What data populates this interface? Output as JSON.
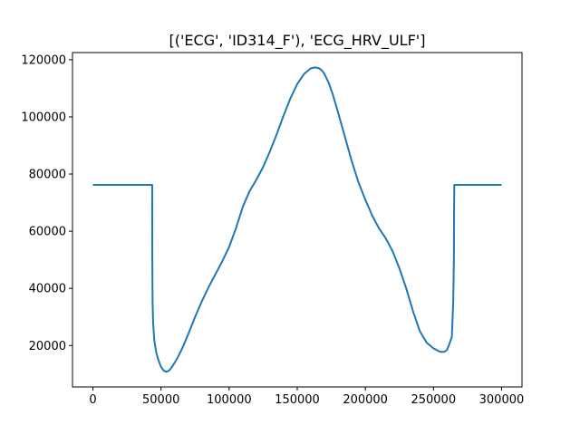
{
  "chart_data": {
    "type": "line",
    "title": "[('ECG', 'ID314_F'), 'ECG_HRV_ULF']",
    "xlabel": "",
    "ylabel": "",
    "xlim": [
      -15000,
      315000
    ],
    "ylim": [
      5500,
      122500
    ],
    "xticks": [
      0,
      50000,
      100000,
      150000,
      200000,
      250000,
      300000
    ],
    "xtick_labels": [
      "0",
      "50000",
      "100000",
      "150000",
      "200000",
      "250000",
      "300000"
    ],
    "yticks": [
      20000,
      40000,
      60000,
      80000,
      100000,
      120000
    ],
    "ytick_labels": [
      "20000",
      "40000",
      "60000",
      "80000",
      "100000",
      "120000"
    ],
    "grid": false,
    "colors": {
      "line": "#1f77b4",
      "axes": "#000000",
      "background": "#ffffff"
    },
    "series": [
      {
        "x": [
          0,
          20000,
          43500,
          43600,
          43800,
          44200,
          45000,
          46500,
          48000,
          50000,
          52000,
          54000,
          56000,
          58000,
          60000,
          63000,
          66000,
          70000,
          75000,
          80000,
          85000,
          90000,
          95000,
          100000,
          105000,
          110000,
          115000,
          120000,
          125000,
          130000,
          135000,
          140000,
          145000,
          150000,
          155000,
          160000,
          163000,
          166000,
          168000,
          170000,
          173000,
          176000,
          180000,
          185000,
          190000,
          195000,
          200000,
          205000,
          210000,
          215000,
          220000,
          225000,
          230000,
          235000,
          240000,
          245000,
          250000,
          255000,
          258000,
          260000,
          262000,
          263500,
          264500,
          265000,
          265100,
          265300,
          265500,
          280000,
          300000
        ],
        "y": [
          76200,
          76200,
          76200,
          50000,
          35000,
          28000,
          22000,
          17500,
          15000,
          12500,
          11200,
          10800,
          11300,
          12500,
          14000,
          16500,
          19500,
          24000,
          30000,
          35500,
          40500,
          45000,
          49500,
          54500,
          61000,
          68500,
          74000,
          78000,
          82500,
          88000,
          94000,
          100500,
          106500,
          111500,
          115000,
          117000,
          117300,
          117000,
          116300,
          115000,
          112000,
          108000,
          101500,
          93000,
          84500,
          77000,
          71000,
          65500,
          61000,
          57500,
          53000,
          47000,
          40000,
          32000,
          25000,
          21000,
          19000,
          17800,
          17800,
          18500,
          21000,
          23000,
          35000,
          50000,
          65000,
          76200,
          76200,
          76200,
          76200
        ]
      }
    ]
  }
}
